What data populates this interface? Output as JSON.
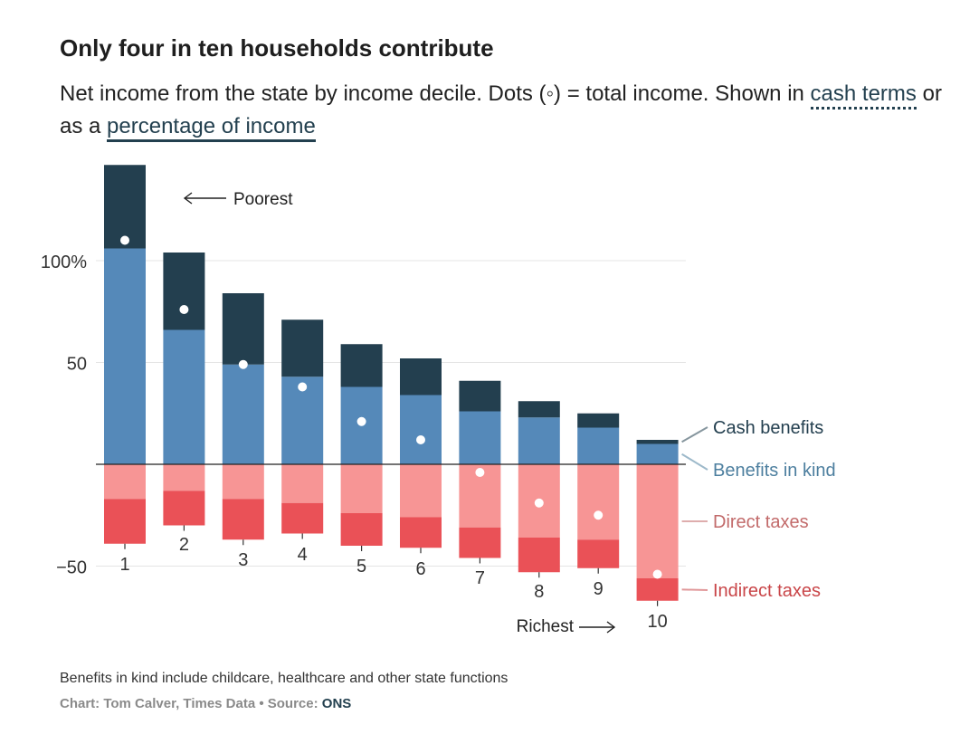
{
  "title": "Only four in ten households contribute",
  "subtitle": {
    "before": "Net income from the state by income decile. Dots (◦) = total income. Shown in ",
    "link1": "cash terms",
    "middle": " or as a ",
    "link2": "percentage of income"
  },
  "footnote": "Benefits in kind include childcare, healthcare and other state functions",
  "credit": {
    "text": "Chart: Tom Calver, Times Data • Source: ",
    "source": "ONS"
  },
  "colors": {
    "cash_benefits": "#233f4f",
    "benefits_in_kind": "#5589b9",
    "direct_taxes": "#f79595",
    "indirect_taxes": "#ea5157",
    "legend_cash": "#233f4f",
    "legend_kind": "#4d7f9f",
    "legend_direct": "#c26a6a",
    "legend_indirect": "#c94548"
  },
  "chart_data": {
    "type": "bar",
    "stacked": true,
    "categories": [
      "1",
      "2",
      "3",
      "4",
      "5",
      "6",
      "7",
      "8",
      "9",
      "10"
    ],
    "series": [
      {
        "name": "Cash benefits",
        "values": [
          41,
          38,
          35,
          28,
          21,
          18,
          15,
          8,
          7,
          2
        ]
      },
      {
        "name": "Benefits in kind",
        "values": [
          106,
          66,
          49,
          43,
          38,
          34,
          26,
          23,
          18,
          10
        ]
      },
      {
        "name": "Direct taxes",
        "values": [
          -17,
          -13,
          -17,
          -19,
          -24,
          -26,
          -31,
          -36,
          -37,
          -56
        ]
      },
      {
        "name": "Indirect taxes",
        "values": [
          -22,
          -17,
          -20,
          -15,
          -16,
          -15,
          -15,
          -17,
          -14,
          -11
        ]
      }
    ],
    "total_income_dots": [
      110,
      76,
      49,
      38,
      21,
      12,
      -4,
      -19,
      -25,
      -54
    ],
    "y_ticks": [
      {
        "value": 100,
        "label": "100%"
      },
      {
        "value": 50,
        "label": "50"
      },
      {
        "value": -50,
        "label": "−50"
      }
    ],
    "ylim": [
      -70,
      150
    ],
    "annotations": {
      "poorest": "Poorest",
      "richest": "Richest"
    },
    "legend": [
      "Cash benefits",
      "Benefits in kind",
      "Direct taxes",
      "Indirect taxes"
    ],
    "xlabel": "",
    "ylabel": ""
  }
}
